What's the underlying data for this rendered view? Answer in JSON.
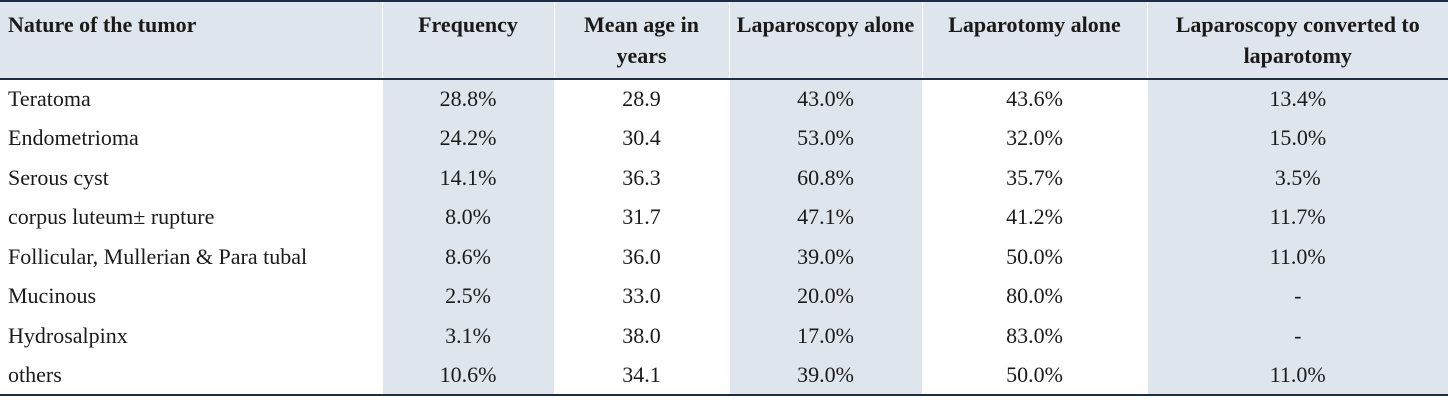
{
  "table": {
    "headers": [
      "Nature of the tumor",
      "Frequency",
      "Mean age in years",
      "Laparoscopy alone",
      "Laparotomy alone",
      "Laparoscopy converted to laparotomy"
    ],
    "rows": [
      [
        "Teratoma",
        "28.8%",
        "28.9",
        "43.0%",
        "43.6%",
        "13.4%"
      ],
      [
        "Endometrioma",
        "24.2%",
        "30.4",
        "53.0%",
        "32.0%",
        "15.0%"
      ],
      [
        "Serous cyst",
        "14.1%",
        "36.3",
        "60.8%",
        "35.7%",
        "3.5%"
      ],
      [
        "corpus luteum± rupture",
        "8.0%",
        "31.7",
        "47.1%",
        "41.2%",
        "11.7%"
      ],
      [
        "Follicular, Mullerian & Para tubal",
        "8.6%",
        "36.0",
        "39.0%",
        "50.0%",
        "11.0%"
      ],
      [
        "Mucinous",
        "2.5%",
        "33.0",
        "20.0%",
        "80.0%",
        "-"
      ],
      [
        "Hydrosalpinx",
        "3.1%",
        "38.0",
        "17.0%",
        "83.0%",
        "-"
      ],
      [
        "others",
        "10.6%",
        "34.1",
        "39.0%",
        "50.0%",
        "11.0%"
      ]
    ]
  },
  "colors": {
    "shade": "#dfe5ec",
    "rule": "#1f2d44"
  }
}
